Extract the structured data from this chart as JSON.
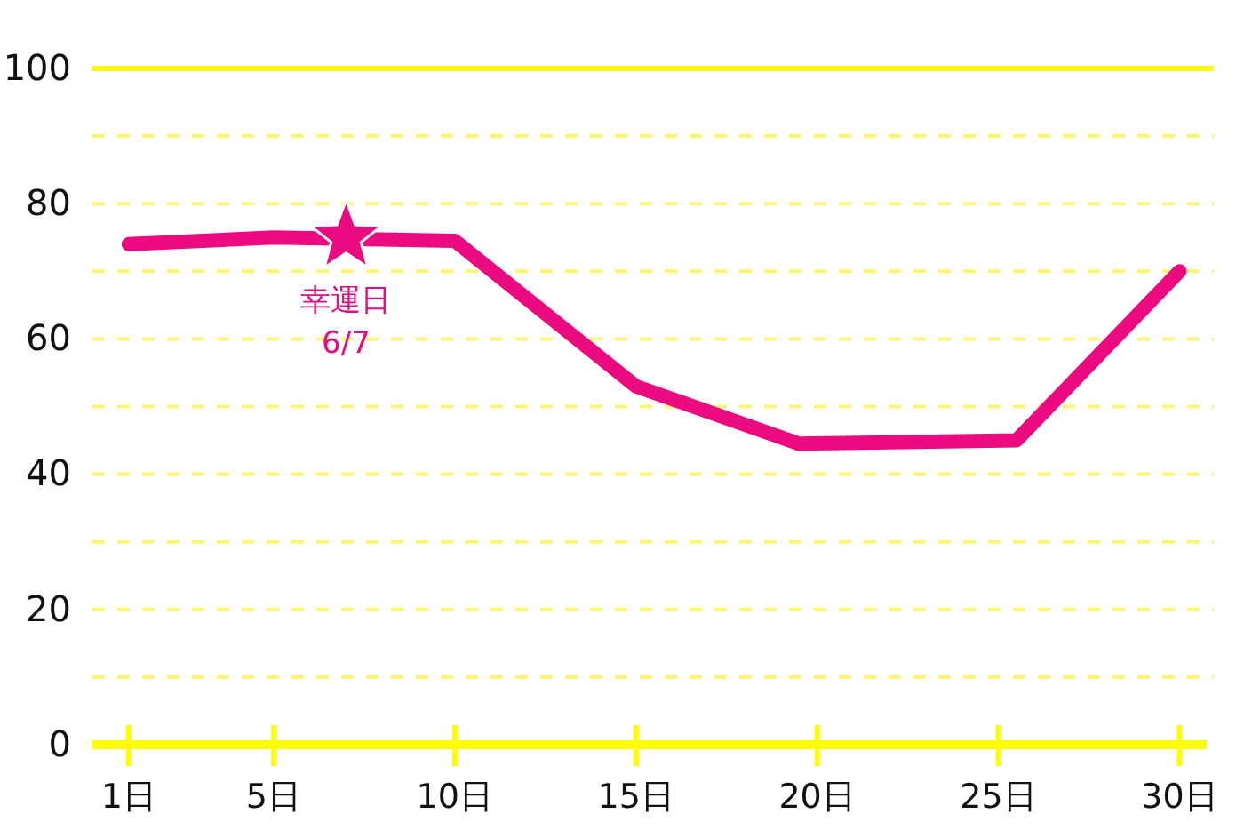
{
  "chart_data": {
    "type": "line",
    "xlim": [
      0,
      30.75
    ],
    "ylim": [
      0,
      100
    ],
    "xticks": [
      {
        "value": 1,
        "label": "1日"
      },
      {
        "value": 5,
        "label": "5日"
      },
      {
        "value": 10,
        "label": "10日"
      },
      {
        "value": 15,
        "label": "15日"
      },
      {
        "value": 20,
        "label": "20日"
      },
      {
        "value": 25,
        "label": "25日"
      },
      {
        "value": 30,
        "label": "30日"
      }
    ],
    "yticks": [
      0,
      {
        "value": 10,
        "label": null
      },
      20,
      {
        "value": 30,
        "label": null
      },
      40,
      {
        "value": 50,
        "label": null
      },
      60,
      {
        "value": 70,
        "label": null
      },
      80,
      {
        "value": 90,
        "label": null
      },
      100
    ],
    "grid": "y",
    "series": [
      {
        "type": "line",
        "color": "#ec0a80",
        "line_style": "solid",
        "x": [
          1,
          5,
          10,
          15,
          19.5,
          25.5,
          30
        ],
        "values": [
          74,
          75,
          74.5,
          53,
          44.5,
          45,
          70
        ]
      },
      {
        "type": "scatter",
        "marker": "star",
        "color": "#ec0a80",
        "x": [
          7
        ],
        "values": [
          75
        ]
      }
    ],
    "annotations": [
      {
        "text": "幸運日\n6/7",
        "x": 7,
        "y": 75
      }
    ]
  }
}
